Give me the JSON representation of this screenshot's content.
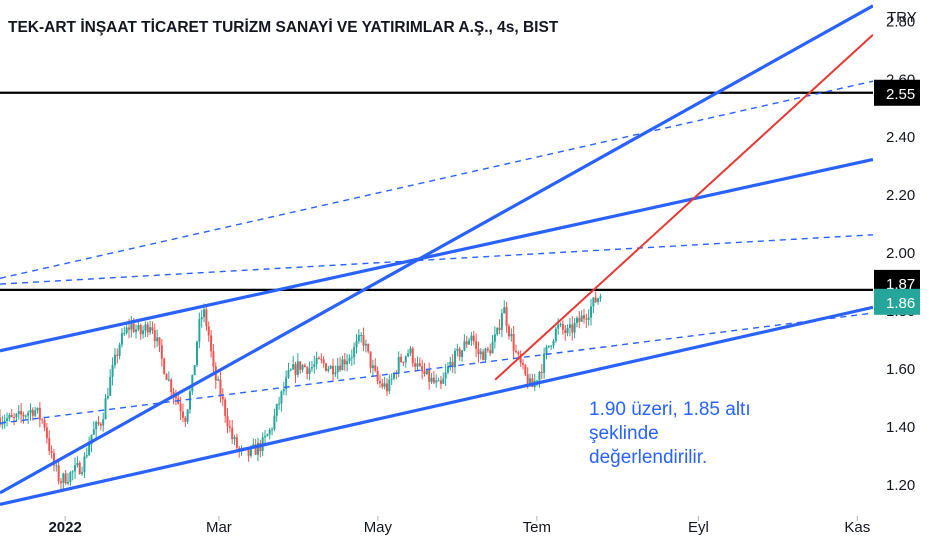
{
  "chart_data": {
    "type": "candlestick",
    "title": "TEK-ART İNŞAAT TİCARET TURİZM SANAYİ VE YATIRIMLAR A.Ş., 4s, BIST",
    "currency": "TRY",
    "y_ticks": [
      "2.80",
      "2.60",
      "2.40",
      "2.20",
      "2.00",
      "1.80",
      "1.60",
      "1.40",
      "1.20"
    ],
    "ylim": [
      1.09,
      2.87
    ],
    "x_ticks": [
      "2022",
      "Mar",
      "May",
      "Tem",
      "Eyl",
      "Kas"
    ],
    "x_tick_days": [
      0,
      59,
      120,
      181,
      243,
      304
    ],
    "xlim": [
      -25,
      310
    ],
    "horizontal_lines": [
      {
        "value": 2.55,
        "label": "2.55",
        "color": "#000000",
        "label_bg": "#000000",
        "label_color": "#ffffff"
      },
      {
        "value": 1.87,
        "label": "1.87",
        "color": "#000000",
        "label_bg": "#000000",
        "label_color": "#ffffff"
      }
    ],
    "last_price": {
      "value": 1.86,
      "label": "1.86",
      "label_bg": "#26a69a",
      "label_color": "#ffffff"
    },
    "trend_lines": [
      {
        "from": [
          -25,
          1.17
        ],
        "to": [
          310,
          2.85
        ],
        "color": "#2962ff",
        "style": "solid"
      },
      {
        "from": [
          -25,
          1.91
        ],
        "to": [
          310,
          2.59
        ],
        "color": "#2962ff",
        "style": "dashed"
      },
      {
        "from": [
          -25,
          1.66
        ],
        "to": [
          310,
          2.32
        ],
        "color": "#2962ff",
        "style": "solid"
      },
      {
        "from": [
          -25,
          1.89
        ],
        "to": [
          310,
          2.06
        ],
        "color": "#2962ff",
        "style": "dashed"
      },
      {
        "from": [
          -25,
          1.41
        ],
        "to": [
          310,
          1.79
        ],
        "color": "#2962ff",
        "style": "dashed"
      },
      {
        "from": [
          -25,
          1.13
        ],
        "to": [
          310,
          1.81
        ],
        "color": "#2962ff",
        "style": "solid"
      },
      {
        "from": [
          165,
          1.56
        ],
        "to": [
          310,
          2.75
        ],
        "color": "#e53935",
        "style": "solid"
      }
    ],
    "price_path": [
      [
        -25,
        1.43
      ],
      [
        -20,
        1.42
      ],
      [
        -12,
        1.46
      ],
      [
        -8,
        1.41
      ],
      [
        -5,
        1.28
      ],
      [
        -2,
        1.21
      ],
      [
        3,
        1.24
      ],
      [
        7,
        1.27
      ],
      [
        10,
        1.37
      ],
      [
        14,
        1.42
      ],
      [
        17,
        1.55
      ],
      [
        21,
        1.69
      ],
      [
        25,
        1.75
      ],
      [
        29,
        1.72
      ],
      [
        33,
        1.76
      ],
      [
        37,
        1.63
      ],
      [
        40,
        1.55
      ],
      [
        43,
        1.49
      ],
      [
        46,
        1.43
      ],
      [
        49,
        1.56
      ],
      [
        51,
        1.73
      ],
      [
        53,
        1.8
      ],
      [
        55,
        1.72
      ],
      [
        57,
        1.58
      ],
      [
        59,
        1.53
      ],
      [
        62,
        1.43
      ],
      [
        64,
        1.36
      ],
      [
        67,
        1.31
      ],
      [
        70,
        1.3
      ],
      [
        73,
        1.32
      ],
      [
        76,
        1.34
      ],
      [
        79,
        1.39
      ],
      [
        82,
        1.48
      ],
      [
        86,
        1.58
      ],
      [
        90,
        1.61
      ],
      [
        94,
        1.6
      ],
      [
        98,
        1.62
      ],
      [
        102,
        1.6
      ],
      [
        106,
        1.62
      ],
      [
        110,
        1.65
      ],
      [
        114,
        1.71
      ],
      [
        117,
        1.62
      ],
      [
        120,
        1.55
      ],
      [
        124,
        1.53
      ],
      [
        128,
        1.62
      ],
      [
        132,
        1.66
      ],
      [
        136,
        1.59
      ],
      [
        140,
        1.56
      ],
      [
        144,
        1.53
      ],
      [
        148,
        1.62
      ],
      [
        152,
        1.66
      ],
      [
        156,
        1.72
      ],
      [
        158,
        1.65
      ],
      [
        162,
        1.65
      ],
      [
        166,
        1.72
      ],
      [
        168,
        1.82
      ],
      [
        170,
        1.74
      ],
      [
        173,
        1.65
      ],
      [
        176,
        1.58
      ],
      [
        179,
        1.53
      ],
      [
        183,
        1.61
      ],
      [
        186,
        1.69
      ],
      [
        189,
        1.74
      ],
      [
        193,
        1.72
      ],
      [
        197,
        1.76
      ],
      [
        201,
        1.8
      ],
      [
        204,
        1.84
      ],
      [
        206,
        1.86
      ]
    ],
    "annotation": [
      "1.90 üzeri, 1.85 altı",
      "şeklinde",
      "değerlendirilir."
    ]
  },
  "colors": {
    "up": "#26a69a",
    "down": "#ef5350",
    "channel": "#2962ff",
    "trend": "#e53935",
    "level": "#000000"
  }
}
